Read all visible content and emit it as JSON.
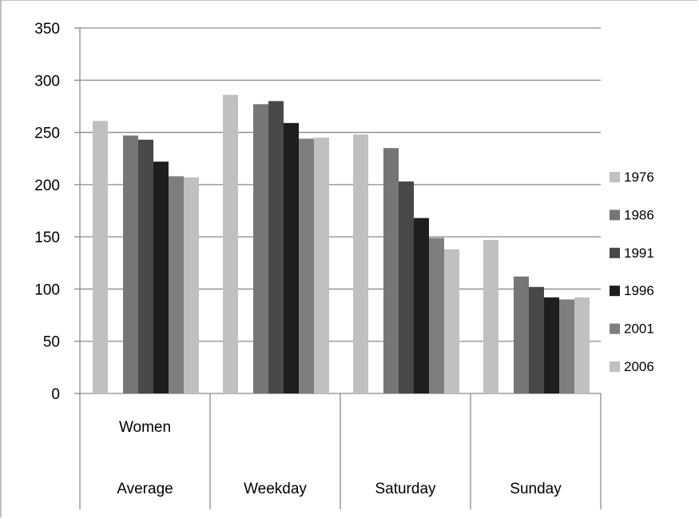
{
  "chart_data": {
    "type": "bar",
    "group_label": "Women",
    "categories": [
      "Average",
      "Weekday",
      "Saturday",
      "Sunday"
    ],
    "series": [
      {
        "name": "1976",
        "values": [
          261,
          286,
          248,
          147
        ]
      },
      {
        "name": "1986",
        "values": [
          247,
          277,
          235,
          112
        ]
      },
      {
        "name": "1991",
        "values": [
          243,
          280,
          203,
          102
        ]
      },
      {
        "name": "1996",
        "values": [
          222,
          259,
          168,
          92
        ]
      },
      {
        "name": "2001",
        "values": [
          208,
          244,
          149,
          90
        ]
      },
      {
        "name": "2006",
        "values": [
          207,
          245,
          138,
          92
        ]
      }
    ],
    "ylim": [
      0,
      350
    ],
    "yticks": [
      0,
      50,
      100,
      150,
      200,
      250,
      300,
      350
    ],
    "grid": true,
    "legend": "right",
    "colors": [
      "#c0c0c0",
      "#767676",
      "#484848",
      "#1e1e1e",
      "#7e7e7e",
      "#c0c0c0"
    ]
  }
}
